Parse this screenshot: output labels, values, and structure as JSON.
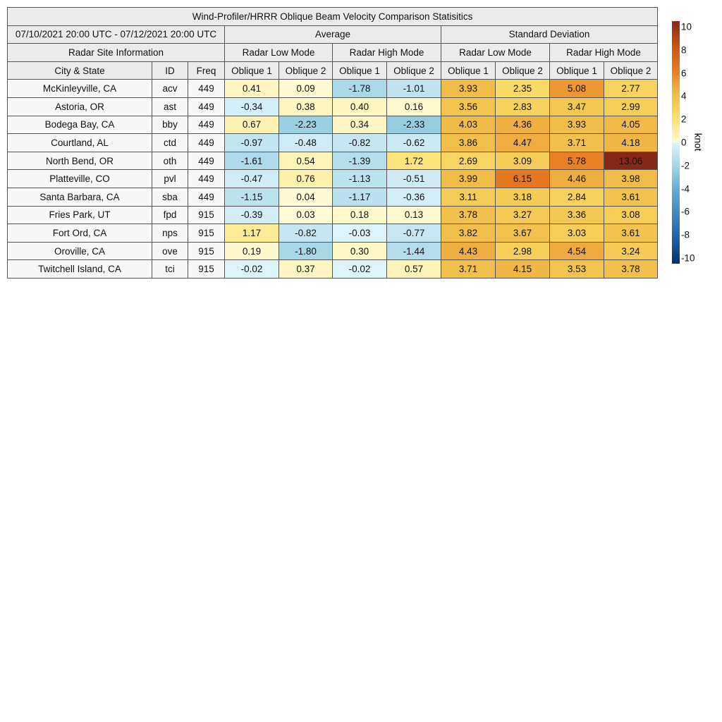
{
  "chart_data": {
    "type": "heatmap",
    "title": "Wind-Profiler/HRRR Oblique Beam Velocity Comparison Statisitics",
    "date_range": "07/10/2021 20:00 UTC - 07/12/2021 20:00 UTC",
    "site_header": "Radar Site Information",
    "groups": [
      "Average",
      "Standard Deviation"
    ],
    "modes": [
      "Radar Low Mode",
      "Radar High Mode",
      "Radar Low Mode",
      "Radar High Mode"
    ],
    "columns": [
      "City & State",
      "ID",
      "Freq",
      "Oblique 1",
      "Oblique 2",
      "Oblique 1",
      "Oblique 2",
      "Oblique 1",
      "Oblique 2",
      "Oblique 1",
      "Oblique 2"
    ],
    "rows": [
      {
        "city": "McKinleyville, CA",
        "id": "acv",
        "freq": "449",
        "values": [
          "0.41",
          "0.09",
          "-1.78",
          "-1.01",
          "3.93",
          "2.35",
          "5.08",
          "2.77"
        ]
      },
      {
        "city": "Astoria, OR",
        "id": "ast",
        "freq": "449",
        "values": [
          "-0.34",
          "0.38",
          "0.40",
          "0.16",
          "3.56",
          "2.83",
          "3.47",
          "2.99"
        ]
      },
      {
        "city": "Bodega Bay, CA",
        "id": "bby",
        "freq": "449",
        "values": [
          "0.67",
          "-2.23",
          "0.34",
          "-2.33",
          "4.03",
          "4.36",
          "3.93",
          "4.05"
        ]
      },
      {
        "city": "Courtland, AL",
        "id": "ctd",
        "freq": "449",
        "values": [
          "-0.97",
          "-0.48",
          "-0.82",
          "-0.62",
          "3.86",
          "4.47",
          "3.71",
          "4.18"
        ]
      },
      {
        "city": "North Bend, OR",
        "id": "oth",
        "freq": "449",
        "values": [
          "-1.61",
          "0.54",
          "-1.39",
          "1.72",
          "2.69",
          "3.09",
          "5.78",
          "13.06"
        ]
      },
      {
        "city": "Platteville, CO",
        "id": "pvl",
        "freq": "449",
        "values": [
          "-0.47",
          "0.76",
          "-1.13",
          "-0.51",
          "3.99",
          "6.15",
          "4.46",
          "3.98"
        ]
      },
      {
        "city": "Santa Barbara, CA",
        "id": "sba",
        "freq": "449",
        "values": [
          "-1.15",
          "0.04",
          "-1.17",
          "-0.36",
          "3.11",
          "3.18",
          "2.84",
          "3.61"
        ]
      },
      {
        "city": "Fries Park, UT",
        "id": "fpd",
        "freq": "915",
        "values": [
          "-0.39",
          "0.03",
          "0.18",
          "0.13",
          "3.78",
          "3.27",
          "3.36",
          "3.08"
        ]
      },
      {
        "city": "Fort Ord, CA",
        "id": "nps",
        "freq": "915",
        "values": [
          "1.17",
          "-0.82",
          "-0.03",
          "-0.77",
          "3.82",
          "3.67",
          "3.03",
          "3.61"
        ]
      },
      {
        "city": "Oroville, CA",
        "id": "ove",
        "freq": "915",
        "values": [
          "0.19",
          "-1.80",
          "0.30",
          "-1.44",
          "4.43",
          "2.98",
          "4.54",
          "3.24"
        ]
      },
      {
        "city": "Twitchell Island, CA",
        "id": "tci",
        "freq": "915",
        "values": [
          "-0.02",
          "0.37",
          "-0.02",
          "0.57",
          "3.71",
          "4.15",
          "3.53",
          "3.78"
        ]
      }
    ],
    "colorbar": {
      "label": "knot",
      "range": [
        -10,
        10
      ],
      "ticks": [
        "10",
        "8",
        "6",
        "4",
        "2",
        "0",
        "-2",
        "-4",
        "-6",
        "-8",
        "-10"
      ],
      "colormap": [
        [
          -10,
          "#08306b"
        ],
        [
          -8,
          "#1c5fa8"
        ],
        [
          -6,
          "#3a86c2"
        ],
        [
          -4,
          "#62a9d3"
        ],
        [
          -2,
          "#a2d4e4"
        ],
        [
          -0.01,
          "#def4fb"
        ],
        [
          0,
          "#fffbd6"
        ],
        [
          2,
          "#fbe06c"
        ],
        [
          4,
          "#f1bc48"
        ],
        [
          6,
          "#e77a22"
        ],
        [
          8,
          "#c9520e"
        ],
        [
          10,
          "#862818"
        ]
      ]
    }
  }
}
